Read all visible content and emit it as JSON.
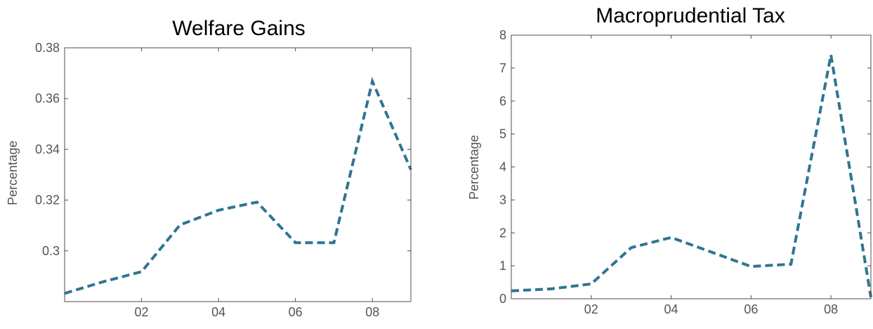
{
  "chart_data": [
    {
      "type": "line",
      "title": "Welfare Gains",
      "xlabel": "",
      "ylabel": "Percentage",
      "x": [
        2000,
        2001,
        2002,
        2003,
        2004,
        2005,
        2006,
        2007,
        2008,
        2009
      ],
      "xlim": [
        2000,
        2009
      ],
      "x_ticks": [
        2002,
        2004,
        2006,
        2008
      ],
      "x_tick_labels": [
        "02",
        "04",
        "06",
        "08"
      ],
      "ylim": [
        0.28,
        0.38
      ],
      "y_ticks": [
        0.3,
        0.32,
        0.34,
        0.36,
        0.38
      ],
      "y_tick_labels": [
        "0.3",
        "0.32",
        "0.34",
        "0.36",
        "0.38"
      ],
      "series": [
        {
          "values": [
            0.2832,
            0.2878,
            0.2918,
            0.3102,
            0.316,
            0.3192,
            0.3032,
            0.3032,
            0.3668,
            0.332
          ],
          "color": "#2f7591",
          "style": "dashed"
        }
      ],
      "grid": false
    },
    {
      "type": "line",
      "title": "Macroprudential Tax",
      "xlabel": "",
      "ylabel": "Percentage",
      "x": [
        2000,
        2001,
        2002,
        2003,
        2004,
        2005,
        2006,
        2007,
        2008,
        2009
      ],
      "xlim": [
        2000,
        2009
      ],
      "x_ticks": [
        2002,
        2004,
        2006,
        2008
      ],
      "x_tick_labels": [
        "02",
        "04",
        "06",
        "08"
      ],
      "ylim": [
        0,
        8
      ],
      "y_ticks": [
        0,
        1,
        2,
        3,
        4,
        5,
        6,
        7,
        8
      ],
      "y_tick_labels": [
        "0",
        "1",
        "2",
        "3",
        "4",
        "5",
        "6",
        "7",
        "8"
      ],
      "series": [
        {
          "values": [
            0.24,
            0.3,
            0.45,
            1.55,
            1.86,
            1.42,
            0.98,
            1.05,
            7.4,
            0.05
          ],
          "color": "#2f7591",
          "style": "dashed"
        }
      ],
      "grid": false
    }
  ]
}
